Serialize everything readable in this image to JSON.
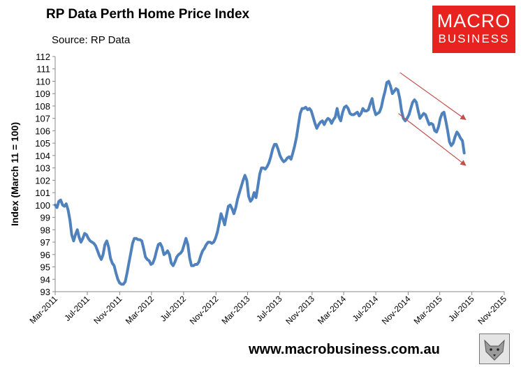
{
  "header": {
    "title": "RP Data Perth Home Price Index",
    "subtitle": "Source: RP Data"
  },
  "brand": {
    "logo_line1": "MACRO",
    "logo_line2": "BUSINESS",
    "logo_color": "#e8231f",
    "footer_url": "www.macrobusiness.com.au",
    "mascot_icon": "wolf-icon"
  },
  "colors": {
    "series": "#4f81bd",
    "arrow": "#c0504d"
  },
  "chart_data": {
    "type": "line",
    "title": "RP Data Perth Home Price Index",
    "xlabel": "",
    "ylabel": "Index (March 11 = 100)",
    "ylim": [
      93,
      112
    ],
    "yticks": [
      93,
      94,
      95,
      96,
      97,
      98,
      99,
      100,
      101,
      102,
      103,
      104,
      105,
      106,
      107,
      108,
      109,
      110,
      111,
      112
    ],
    "xticks": [
      "Mar-2011",
      "Jul-2011",
      "Nov-2011",
      "Mar-2012",
      "Jul-2012",
      "Nov-2012",
      "Mar-2013",
      "Jul-2013",
      "Nov-2013",
      "Mar-2014",
      "Jul-2014",
      "Nov-2014",
      "Mar-2015",
      "Jul-2015",
      "Nov-2015"
    ],
    "grid": false,
    "legend": "none",
    "series": [
      {
        "values": [
          [
            "2011-03-01",
            100.0
          ],
          [
            "2011-03-08",
            99.8
          ],
          [
            "2011-03-15",
            100.3
          ],
          [
            "2011-03-22",
            100.4
          ],
          [
            "2011-03-29",
            100.0
          ],
          [
            "2011-04-05",
            99.9
          ],
          [
            "2011-04-12",
            100.1
          ],
          [
            "2011-04-19",
            99.6
          ],
          [
            "2011-04-26",
            98.8
          ],
          [
            "2011-05-03",
            97.6
          ],
          [
            "2011-05-10",
            97.1
          ],
          [
            "2011-05-17",
            97.6
          ],
          [
            "2011-05-24",
            98.0
          ],
          [
            "2011-05-31",
            97.4
          ],
          [
            "2011-06-07",
            97.0
          ],
          [
            "2011-06-14",
            97.3
          ],
          [
            "2011-06-21",
            97.7
          ],
          [
            "2011-06-28",
            97.6
          ],
          [
            "2011-07-05",
            97.3
          ],
          [
            "2011-07-12",
            97.1
          ],
          [
            "2011-07-19",
            97.0
          ],
          [
            "2011-07-26",
            96.9
          ],
          [
            "2011-08-02",
            96.7
          ],
          [
            "2011-08-09",
            96.3
          ],
          [
            "2011-08-16",
            95.9
          ],
          [
            "2011-08-23",
            95.6
          ],
          [
            "2011-08-30",
            96.0
          ],
          [
            "2011-09-06",
            96.8
          ],
          [
            "2011-09-13",
            97.1
          ],
          [
            "2011-09-20",
            96.6
          ],
          [
            "2011-09-27",
            95.7
          ],
          [
            "2011-10-04",
            95.3
          ],
          [
            "2011-10-11",
            95.1
          ],
          [
            "2011-10-18",
            94.5
          ],
          [
            "2011-10-25",
            94.0
          ],
          [
            "2011-11-01",
            93.7
          ],
          [
            "2011-11-08",
            93.6
          ],
          [
            "2011-11-15",
            93.6
          ],
          [
            "2011-11-22",
            93.8
          ],
          [
            "2011-11-29",
            94.5
          ],
          [
            "2011-12-06",
            95.3
          ],
          [
            "2011-12-13",
            96.1
          ],
          [
            "2011-12-20",
            96.9
          ],
          [
            "2011-12-27",
            97.3
          ],
          [
            "2012-01-03",
            97.3
          ],
          [
            "2012-01-10",
            97.2
          ],
          [
            "2012-01-17",
            97.2
          ],
          [
            "2012-01-24",
            97.1
          ],
          [
            "2012-01-31",
            96.5
          ],
          [
            "2012-02-07",
            95.8
          ],
          [
            "2012-02-14",
            95.6
          ],
          [
            "2012-02-21",
            95.5
          ],
          [
            "2012-02-28",
            95.2
          ],
          [
            "2012-03-06",
            95.3
          ],
          [
            "2012-03-13",
            95.7
          ],
          [
            "2012-03-20",
            96.3
          ],
          [
            "2012-03-27",
            96.8
          ],
          [
            "2012-04-03",
            96.9
          ],
          [
            "2012-04-10",
            96.6
          ],
          [
            "2012-04-17",
            96.0
          ],
          [
            "2012-04-24",
            96.1
          ],
          [
            "2012-05-01",
            96.3
          ],
          [
            "2012-05-08",
            96.0
          ],
          [
            "2012-05-15",
            95.3
          ],
          [
            "2012-05-22",
            95.1
          ],
          [
            "2012-05-29",
            95.4
          ],
          [
            "2012-06-05",
            95.8
          ],
          [
            "2012-06-12",
            96.0
          ],
          [
            "2012-06-19",
            96.1
          ],
          [
            "2012-06-26",
            96.3
          ],
          [
            "2012-07-03",
            96.8
          ],
          [
            "2012-07-10",
            97.3
          ],
          [
            "2012-07-17",
            96.8
          ],
          [
            "2012-07-24",
            95.7
          ],
          [
            "2012-07-31",
            95.1
          ],
          [
            "2012-08-07",
            95.1
          ],
          [
            "2012-08-14",
            95.2
          ],
          [
            "2012-08-21",
            95.2
          ],
          [
            "2012-08-28",
            95.4
          ],
          [
            "2012-09-04",
            95.9
          ],
          [
            "2012-09-11",
            96.3
          ],
          [
            "2012-09-18",
            96.5
          ],
          [
            "2012-09-25",
            96.8
          ],
          [
            "2012-10-02",
            97.0
          ],
          [
            "2012-10-09",
            97.0
          ],
          [
            "2012-10-16",
            96.9
          ],
          [
            "2012-10-23",
            97.0
          ],
          [
            "2012-10-30",
            97.3
          ],
          [
            "2012-11-06",
            97.8
          ],
          [
            "2012-11-13",
            98.5
          ],
          [
            "2012-11-20",
            99.3
          ],
          [
            "2012-11-27",
            98.9
          ],
          [
            "2012-12-04",
            98.4
          ],
          [
            "2012-12-11",
            99.2
          ],
          [
            "2012-12-18",
            99.9
          ],
          [
            "2012-12-25",
            100.0
          ],
          [
            "2013-01-01",
            99.7
          ],
          [
            "2013-01-08",
            99.3
          ],
          [
            "2013-01-15",
            99.8
          ],
          [
            "2013-01-22",
            100.5
          ],
          [
            "2013-01-29",
            101.0
          ],
          [
            "2013-02-05",
            101.5
          ],
          [
            "2013-02-12",
            102.0
          ],
          [
            "2013-02-19",
            102.4
          ],
          [
            "2013-02-26",
            102.0
          ],
          [
            "2013-03-05",
            100.7
          ],
          [
            "2013-03-12",
            100.3
          ],
          [
            "2013-03-19",
            100.5
          ],
          [
            "2013-03-26",
            101.0
          ],
          [
            "2013-04-02",
            100.6
          ],
          [
            "2013-04-09",
            101.5
          ],
          [
            "2013-04-16",
            102.5
          ],
          [
            "2013-04-23",
            103.0
          ],
          [
            "2013-04-30",
            103.0
          ],
          [
            "2013-05-07",
            102.9
          ],
          [
            "2013-05-14",
            103.1
          ],
          [
            "2013-05-21",
            103.4
          ],
          [
            "2013-05-28",
            103.9
          ],
          [
            "2013-06-04",
            104.5
          ],
          [
            "2013-06-11",
            104.9
          ],
          [
            "2013-06-18",
            104.9
          ],
          [
            "2013-06-25",
            104.5
          ],
          [
            "2013-07-02",
            104.0
          ],
          [
            "2013-07-09",
            103.7
          ],
          [
            "2013-07-16",
            103.5
          ],
          [
            "2013-07-23",
            103.6
          ],
          [
            "2013-07-30",
            103.8
          ],
          [
            "2013-08-06",
            103.9
          ],
          [
            "2013-08-13",
            103.7
          ],
          [
            "2013-08-20",
            104.2
          ],
          [
            "2013-08-27",
            104.8
          ],
          [
            "2013-09-03",
            105.5
          ],
          [
            "2013-09-10",
            106.5
          ],
          [
            "2013-09-17",
            107.4
          ],
          [
            "2013-09-24",
            107.8
          ],
          [
            "2013-10-01",
            107.8
          ],
          [
            "2013-10-08",
            107.9
          ],
          [
            "2013-10-15",
            107.7
          ],
          [
            "2013-10-22",
            107.8
          ],
          [
            "2013-10-29",
            107.6
          ],
          [
            "2013-11-05",
            107.1
          ],
          [
            "2013-11-12",
            106.6
          ],
          [
            "2013-11-19",
            106.2
          ],
          [
            "2013-11-26",
            106.5
          ],
          [
            "2013-12-03",
            106.7
          ],
          [
            "2013-12-10",
            106.8
          ],
          [
            "2013-12-17",
            106.5
          ],
          [
            "2013-12-24",
            106.8
          ],
          [
            "2013-12-31",
            107.0
          ],
          [
            "2014-01-07",
            106.9
          ],
          [
            "2014-01-14",
            106.6
          ],
          [
            "2014-01-21",
            106.9
          ],
          [
            "2014-01-28",
            107.1
          ],
          [
            "2014-02-04",
            107.8
          ],
          [
            "2014-02-11",
            107.1
          ],
          [
            "2014-02-18",
            106.8
          ],
          [
            "2014-02-25",
            107.5
          ],
          [
            "2014-03-04",
            107.9
          ],
          [
            "2014-03-11",
            108.0
          ],
          [
            "2014-03-18",
            107.8
          ],
          [
            "2014-03-25",
            107.4
          ],
          [
            "2014-04-01",
            107.3
          ],
          [
            "2014-04-08",
            107.3
          ],
          [
            "2014-04-15",
            107.4
          ],
          [
            "2014-04-22",
            107.5
          ],
          [
            "2014-04-29",
            107.2
          ],
          [
            "2014-05-06",
            107.4
          ],
          [
            "2014-05-13",
            107.8
          ],
          [
            "2014-05-20",
            107.6
          ],
          [
            "2014-05-27",
            107.6
          ],
          [
            "2014-06-03",
            107.7
          ],
          [
            "2014-06-10",
            108.2
          ],
          [
            "2014-06-17",
            108.6
          ],
          [
            "2014-06-24",
            107.8
          ],
          [
            "2014-07-01",
            107.3
          ],
          [
            "2014-07-08",
            107.4
          ],
          [
            "2014-07-15",
            107.5
          ],
          [
            "2014-07-22",
            107.9
          ],
          [
            "2014-07-29",
            108.6
          ],
          [
            "2014-08-05",
            109.2
          ],
          [
            "2014-08-12",
            109.9
          ],
          [
            "2014-08-19",
            110.0
          ],
          [
            "2014-08-26",
            109.6
          ],
          [
            "2014-09-02",
            109.0
          ],
          [
            "2014-09-09",
            109.2
          ],
          [
            "2014-09-16",
            109.4
          ],
          [
            "2014-09-23",
            109.3
          ],
          [
            "2014-09-30",
            108.6
          ],
          [
            "2014-10-07",
            107.6
          ],
          [
            "2014-10-14",
            107.0
          ],
          [
            "2014-10-21",
            106.8
          ],
          [
            "2014-10-28",
            107.0
          ],
          [
            "2014-11-04",
            107.3
          ],
          [
            "2014-11-11",
            107.8
          ],
          [
            "2014-11-18",
            108.3
          ],
          [
            "2014-11-25",
            108.5
          ],
          [
            "2014-12-02",
            108.3
          ],
          [
            "2014-12-09",
            107.6
          ],
          [
            "2014-12-16",
            107.0
          ],
          [
            "2014-12-23",
            107.2
          ],
          [
            "2014-12-30",
            107.4
          ],
          [
            "2015-01-06",
            107.3
          ],
          [
            "2015-01-13",
            106.9
          ],
          [
            "2015-01-20",
            106.5
          ],
          [
            "2015-01-27",
            106.6
          ],
          [
            "2015-02-03",
            106.5
          ],
          [
            "2015-02-10",
            106.0
          ],
          [
            "2015-02-17",
            105.9
          ],
          [
            "2015-02-24",
            106.3
          ],
          [
            "2015-03-03",
            107.0
          ],
          [
            "2015-03-10",
            107.4
          ],
          [
            "2015-03-17",
            107.5
          ],
          [
            "2015-03-24",
            106.8
          ],
          [
            "2015-03-31",
            106.0
          ],
          [
            "2015-04-07",
            105.1
          ],
          [
            "2015-04-14",
            104.8
          ],
          [
            "2015-04-21",
            105.0
          ],
          [
            "2015-04-28",
            105.5
          ],
          [
            "2015-05-05",
            105.9
          ],
          [
            "2015-05-12",
            105.7
          ],
          [
            "2015-05-19",
            105.4
          ],
          [
            "2015-05-26",
            105.2
          ],
          [
            "2015-06-02",
            104.2
          ]
        ]
      }
    ],
    "annotations": [
      {
        "kind": "arrow",
        "from": [
          "2014-10-01",
          110.7
        ],
        "to": [
          "2015-06-08",
          106.9
        ],
        "color": "#c0504d"
      },
      {
        "kind": "arrow",
        "from": [
          "2014-09-25",
          107.4
        ],
        "to": [
          "2015-06-08",
          103.2
        ],
        "color": "#c0504d"
      }
    ]
  }
}
